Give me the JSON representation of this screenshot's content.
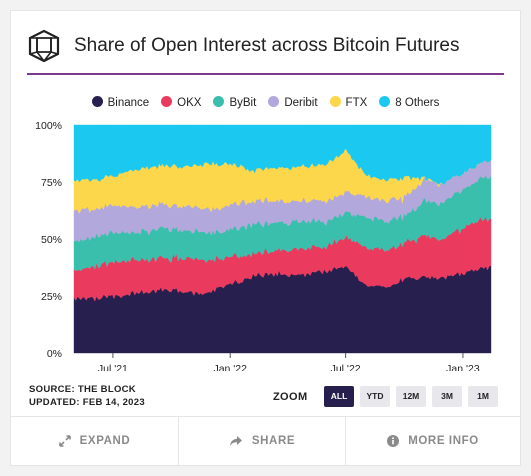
{
  "title": "Share of Open Interest across Bitcoin Futures",
  "source_line": "SOURCE: THE BLOCK",
  "updated_line": "UPDATED: FEB 14, 2023",
  "zoom": {
    "label": "ZOOM",
    "options": [
      "ALL",
      "YTD",
      "12M",
      "3M",
      "1M"
    ],
    "active": "ALL"
  },
  "footer": {
    "expand": "EXPAND",
    "share": "SHARE",
    "more_info": "MORE INFO"
  },
  "colors": {
    "accent": "#7d3a8c"
  },
  "chart_data": {
    "type": "area",
    "stacked": true,
    "normalized": true,
    "x_range": [
      "2021-05-01",
      "2023-02-14"
    ],
    "x_ticks": [
      {
        "date": "2021-07-01",
        "label": "Jul '21"
      },
      {
        "date": "2022-01-01",
        "label": "Jan '22"
      },
      {
        "date": "2022-07-01",
        "label": "Jul '22"
      },
      {
        "date": "2023-01-01",
        "label": "Jan '23"
      }
    ],
    "y_ticks": [
      0,
      25,
      50,
      75,
      100
    ],
    "y_tick_labels": [
      "0%",
      "25%",
      "50%",
      "75%",
      "100%"
    ],
    "ylim": [
      0,
      100
    ],
    "grid": false,
    "legend_position": "top",
    "x": [
      "2021-05-01",
      "2021-06-01",
      "2021-07-01",
      "2021-08-01",
      "2021-09-01",
      "2021-10-01",
      "2021-11-01",
      "2021-12-01",
      "2022-01-01",
      "2022-02-01",
      "2022-03-01",
      "2022-04-01",
      "2022-05-01",
      "2022-06-01",
      "2022-07-01",
      "2022-08-01",
      "2022-09-01",
      "2022-10-01",
      "2022-11-01",
      "2022-12-01",
      "2023-01-01",
      "2023-02-14"
    ],
    "series": [
      {
        "name": "Binance",
        "color": "#27204f",
        "values": [
          24,
          24,
          25,
          26,
          27,
          28,
          26,
          27,
          30,
          33,
          35,
          34,
          35,
          36,
          38,
          30,
          29,
          32,
          33,
          33,
          35,
          38
        ]
      },
      {
        "name": "OKX",
        "color": "#ea3b5e",
        "values": [
          12,
          14,
          15,
          15,
          14,
          14,
          15,
          14,
          12,
          10,
          10,
          11,
          11,
          11,
          13,
          17,
          16,
          16,
          18,
          17,
          20,
          21
        ]
      },
      {
        "name": "ByBit",
        "color": "#3bbfad",
        "values": [
          13,
          13,
          13,
          12,
          13,
          13,
          12,
          12,
          12,
          13,
          12,
          12,
          12,
          11,
          11,
          13,
          13,
          12,
          15,
          16,
          17,
          19
        ]
      },
      {
        "name": "Deribit",
        "color": "#b2a8db",
        "values": [
          14,
          12,
          12,
          11,
          11,
          10,
          11,
          10,
          11,
          10,
          10,
          9,
          9,
          9,
          9,
          9,
          9,
          8,
          10,
          8,
          7,
          7
        ]
      },
      {
        "name": "FTX",
        "color": "#fcd64b",
        "values": [
          13,
          13,
          13,
          16,
          17,
          17,
          18,
          20,
          18,
          14,
          14,
          15,
          15,
          16,
          18,
          9,
          9,
          9,
          1,
          0,
          0,
          0
        ]
      },
      {
        "name": "8 Others",
        "color": "#1bc8ef",
        "values": [
          24,
          24,
          22,
          20,
          18,
          18,
          18,
          17,
          17,
          20,
          19,
          19,
          18,
          17,
          11,
          22,
          24,
          23,
          23,
          26,
          21,
          15
        ]
      }
    ]
  }
}
